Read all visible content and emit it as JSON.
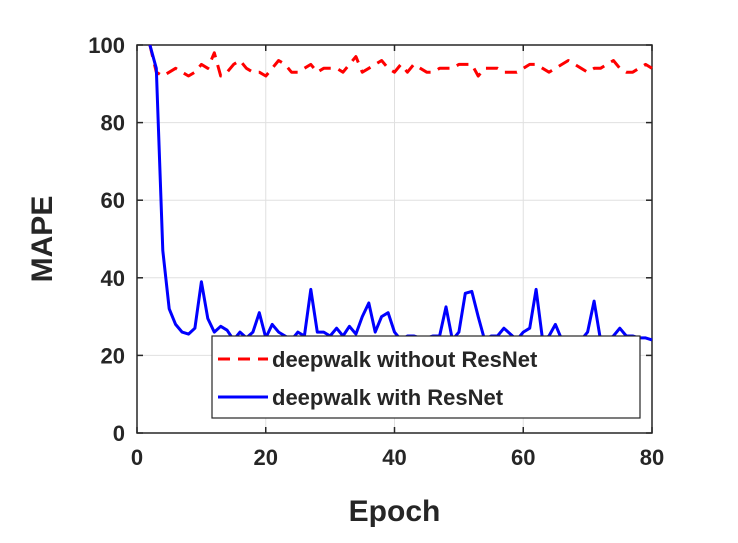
{
  "chart_data": {
    "type": "line",
    "title": "",
    "xlabel": "Epoch",
    "ylabel": "MAPE",
    "xlim": [
      0,
      80
    ],
    "ylim": [
      0,
      100
    ],
    "xticks": [
      "0",
      "20",
      "40",
      "60",
      "80"
    ],
    "yticks": [
      "0",
      "20",
      "40",
      "60",
      "80",
      "100"
    ],
    "grid": true,
    "legend_position": "bottom-right",
    "series": [
      {
        "name": "deepwalk without ResNet",
        "color": "#ff0000",
        "dash": "dashed",
        "x": [
          2,
          3,
          4,
          5,
          6,
          7,
          8,
          9,
          10,
          11,
          12,
          13,
          14,
          15,
          16,
          17,
          18,
          19,
          20,
          21,
          22,
          23,
          24,
          25,
          26,
          27,
          28,
          29,
          30,
          31,
          32,
          33,
          34,
          35,
          36,
          37,
          38,
          39,
          40,
          41,
          42,
          43,
          44,
          45,
          46,
          47,
          48,
          49,
          50,
          51,
          52,
          53,
          54,
          55,
          56,
          57,
          58,
          59,
          60,
          61,
          62,
          63,
          64,
          65,
          66,
          67,
          68,
          69,
          70,
          71,
          72,
          73,
          74,
          75,
          76,
          77,
          78,
          79,
          80
        ],
        "y": [
          100,
          93,
          92,
          93,
          94,
          93,
          92,
          93,
          95,
          94,
          98,
          92,
          93,
          95,
          96,
          94,
          93,
          93,
          92,
          94,
          96,
          95,
          93,
          93,
          94,
          95,
          93,
          94,
          94,
          94,
          93,
          95,
          97,
          93,
          94,
          95,
          96,
          94,
          93,
          95,
          93,
          95,
          94,
          93,
          93,
          94,
          94,
          94,
          95,
          95,
          95,
          92,
          94,
          94,
          94,
          93,
          93,
          93,
          94,
          95,
          95,
          94,
          93,
          94,
          95,
          96,
          95,
          94,
          93,
          94,
          94,
          95,
          96,
          94,
          93,
          93,
          94,
          95,
          94
        ]
      },
      {
        "name": "deepwalk with ResNet",
        "color": "#0000ff",
        "dash": "solid",
        "x": [
          2,
          3,
          4,
          5,
          6,
          7,
          8,
          9,
          10,
          11,
          12,
          13,
          14,
          15,
          16,
          17,
          18,
          19,
          20,
          21,
          22,
          23,
          24,
          25,
          26,
          27,
          28,
          29,
          30,
          31,
          32,
          33,
          34,
          35,
          36,
          37,
          38,
          39,
          40,
          41,
          42,
          43,
          44,
          45,
          46,
          47,
          48,
          49,
          50,
          51,
          52,
          53,
          54,
          55,
          56,
          57,
          58,
          59,
          60,
          61,
          62,
          63,
          64,
          65,
          66,
          67,
          68,
          69,
          70,
          71,
          72,
          73,
          74,
          75,
          76,
          77,
          78,
          79,
          80
        ],
        "y": [
          100,
          94,
          47,
          32,
          28,
          26,
          25.5,
          27,
          39,
          29.5,
          26,
          27.5,
          26.5,
          24,
          26,
          24.5,
          26,
          31,
          24.5,
          28,
          26,
          25,
          24,
          26,
          25,
          37,
          26,
          26,
          25,
          27,
          25,
          27.5,
          25.5,
          30,
          33.5,
          26,
          30,
          31,
          26,
          24,
          25,
          25,
          24.5,
          24.5,
          25,
          25,
          32.5,
          24,
          26,
          36,
          36.5,
          30,
          24,
          25,
          25,
          27,
          25.5,
          24,
          26,
          27,
          37,
          24,
          25,
          28,
          24,
          24,
          24,
          24,
          26,
          34,
          24,
          24,
          25,
          27,
          25,
          25,
          24.5,
          24.5,
          24
        ]
      }
    ]
  }
}
